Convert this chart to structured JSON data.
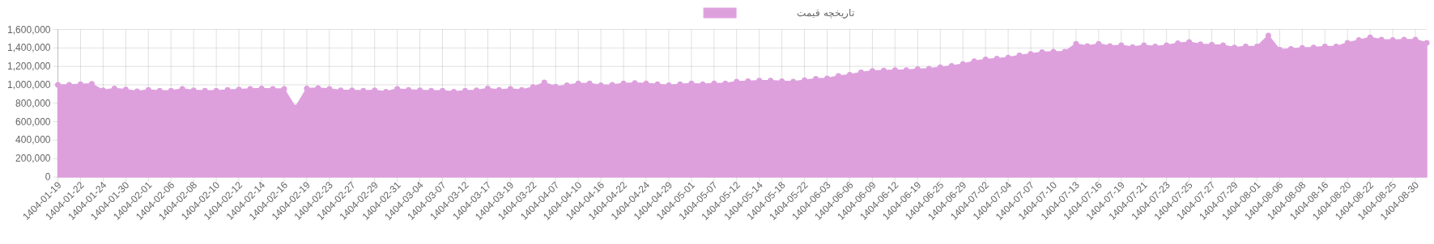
{
  "chart_data": {
    "type": "area",
    "legend": "top",
    "grid": true,
    "marker": "circle",
    "categories": [
      "1404-01-19",
      null,
      "1404-01-22",
      null,
      "1404-01-24",
      null,
      "1404-01-30",
      null,
      "1404-02-01",
      null,
      "1404-02-06",
      null,
      "1404-02-08",
      null,
      "1404-02-10",
      null,
      "1404-02-12",
      null,
      "1404-02-14",
      null,
      "1404-02-16",
      null,
      "1404-02-19",
      null,
      "1404-02-23",
      null,
      "1404-02-27",
      null,
      "1404-02-29",
      null,
      "1404-02-31",
      null,
      "1404-03-04",
      null,
      "1404-03-07",
      null,
      "1404-03-12",
      null,
      "1404-03-17",
      null,
      "1404-03-19",
      null,
      "1404-03-22",
      null,
      "1404-04-07",
      null,
      "1404-04-10",
      null,
      "1404-04-16",
      null,
      "1404-04-22",
      null,
      "1404-04-24",
      null,
      "1404-04-29",
      null,
      "1404-05-01",
      null,
      "1404-05-07",
      null,
      "1404-05-12",
      null,
      "1404-05-14",
      null,
      "1404-05-18",
      null,
      "1404-05-22",
      null,
      "1404-06-03",
      null,
      "1404-06-06",
      null,
      "1404-06-09",
      null,
      "1404-06-12",
      null,
      "1404-06-19",
      null,
      "1404-06-25",
      null,
      "1404-06-29",
      null,
      "1404-07-02",
      null,
      "1404-07-04",
      null,
      "1404-07-07",
      null,
      "1404-07-10",
      null,
      "1404-07-13",
      null,
      "1404-07-16",
      null,
      "1404-07-19",
      null,
      "1404-07-21",
      null,
      "1404-07-23",
      null,
      "1404-07-25",
      null,
      "1404-07-27",
      null,
      "1404-07-29",
      null,
      "1404-08-01",
      null,
      "1404-08-06",
      null,
      "1404-08-08",
      null,
      "1404-08-16",
      null,
      "1404-08-20",
      null,
      "1404-08-22",
      null,
      "1404-08-25",
      null,
      "1404-08-30",
      null
    ],
    "series": [
      {
        "name": "تاریخچه قیمت",
        "color": "#dda0dd",
        "values": [
          1000000,
          1000000,
          1005000,
          1010000,
          940000,
          960000,
          950000,
          930000,
          945000,
          935000,
          935000,
          955000,
          940000,
          935000,
          935000,
          945000,
          950000,
          955000,
          960000,
          955000,
          955000,
          755000,
          960000,
          965000,
          955000,
          940000,
          940000,
          935000,
          940000,
          925000,
          955000,
          945000,
          940000,
          935000,
          935000,
          925000,
          935000,
          940000,
          960000,
          945000,
          955000,
          945000,
          975000,
          1025000,
          980000,
          995000,
          1015000,
          1015000,
          995000,
          1000000,
          1015000,
          1020000,
          1015000,
          1005000,
          995000,
          1005000,
          1015000,
          1005000,
          1015000,
          1015000,
          1035000,
          1040000,
          1045000,
          1045000,
          1040000,
          1035000,
          1050000,
          1065000,
          1070000,
          1095000,
          1110000,
          1135000,
          1150000,
          1155000,
          1160000,
          1160000,
          1170000,
          1175000,
          1190000,
          1205000,
          1225000,
          1255000,
          1275000,
          1285000,
          1295000,
          1320000,
          1335000,
          1355000,
          1360000,
          1360000,
          1445000,
          1420000,
          1445000,
          1420000,
          1430000,
          1410000,
          1430000,
          1415000,
          1430000,
          1450000,
          1465000,
          1440000,
          1435000,
          1430000,
          1405000,
          1415000,
          1415000,
          1535000,
          1380000,
          1390000,
          1400000,
          1405000,
          1415000,
          1415000,
          1455000,
          1485000,
          1515000,
          1490000,
          1485000,
          1490000,
          1490000,
          1455000
        ]
      }
    ],
    "ylim": [
      0,
      1600000
    ],
    "yticks": [
      0,
      {
        "value": 200000,
        "label": "200,000"
      },
      {
        "value": 400000,
        "label": "400,000"
      },
      {
        "value": 600000,
        "label": "600,000"
      },
      {
        "value": 800000,
        "label": "800,000"
      },
      {
        "value": 1000000,
        "label": "1,000,000"
      },
      {
        "value": 1200000,
        "label": "1,200,000"
      },
      {
        "value": 1400000,
        "label": "1,400,000"
      },
      {
        "value": 1600000,
        "label": "1,600,000"
      }
    ]
  }
}
